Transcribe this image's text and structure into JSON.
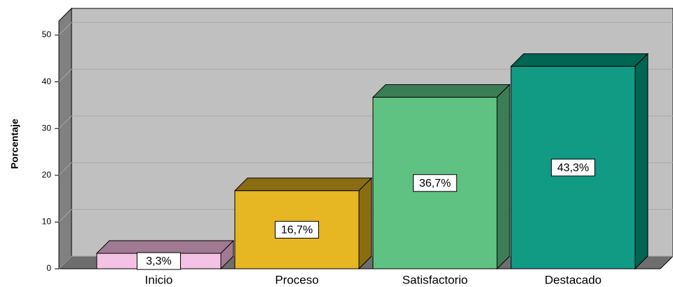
{
  "chart_data": {
    "type": "bar3d",
    "y_label": "Porcentaje",
    "categories": [
      "Inicio",
      "Proceso",
      "Satisfactorio",
      "Destacado"
    ],
    "values": [
      3.3,
      16.7,
      36.7,
      43.3
    ],
    "value_labels": [
      "3,3%",
      "16,7%",
      "36,7%",
      "43,3%"
    ],
    "colors": [
      "#f4c2e4",
      "#e6b623",
      "#5fc283",
      "#119a84"
    ],
    "side_colors": [
      "#a07a92",
      "#8a6d12",
      "#3c7d55",
      "#006552"
    ],
    "ylim": [
      0,
      53
    ],
    "yticks": [
      0,
      10,
      20,
      30,
      40,
      50
    ],
    "grid": true
  }
}
